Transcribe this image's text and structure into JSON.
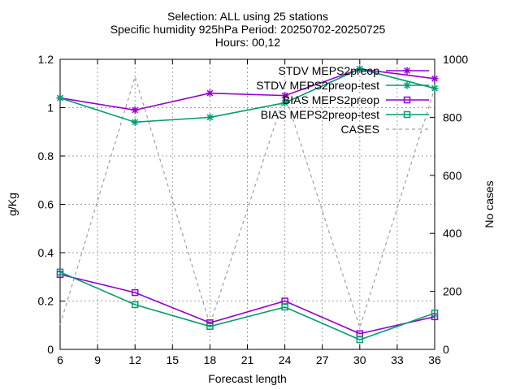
{
  "chart_data": {
    "type": "line",
    "title_lines": [
      "Selection: ALL using    25 stations",
      "Specific humidity 925hPa   Period: 20250702-20250725",
      "Hours: 00,12"
    ],
    "xlabel": "Forecast length",
    "ylabel": "g/Kg",
    "y2label": "No cases",
    "xlim": [
      6,
      36
    ],
    "ylim": [
      0,
      1.2
    ],
    "y2lim": [
      0,
      1000
    ],
    "x_ticks": [
      "6",
      "9",
      "12",
      "15",
      "18",
      "21",
      "24",
      "27",
      "30",
      "33",
      "36"
    ],
    "y_ticks": [
      "0",
      "0.2",
      "0.4",
      "0.6",
      "0.8",
      "1",
      "1.2"
    ],
    "y2_ticks": [
      "0",
      "200",
      "400",
      "600",
      "800",
      "1000"
    ],
    "grid": true,
    "legend_position": "top-right",
    "x": [
      6,
      12,
      18,
      24,
      30,
      36
    ],
    "series": [
      {
        "name": "STDV MEPS2preop",
        "axis": "y1",
        "color": "#9400d3",
        "marker": "star",
        "dash": "solid",
        "values": [
          1.04,
          0.99,
          1.06,
          1.05,
          1.16,
          1.12
        ]
      },
      {
        "name": "STDV MEPS2preop-test",
        "axis": "y1",
        "color": "#009e73",
        "marker": "star",
        "dash": "solid",
        "values": [
          1.04,
          0.94,
          0.96,
          1.02,
          1.16,
          1.08
        ]
      },
      {
        "name": "BIAS MEPS2preop",
        "axis": "y1",
        "color": "#9400d3",
        "marker": "square",
        "dash": "solid",
        "values": [
          0.31,
          0.235,
          0.11,
          0.2,
          0.065,
          0.135
        ]
      },
      {
        "name": "BIAS MEPS2preop-test",
        "axis": "y1",
        "color": "#009e73",
        "marker": "square",
        "dash": "solid",
        "values": [
          0.32,
          0.185,
          0.095,
          0.175,
          0.04,
          0.15
        ]
      },
      {
        "name": "CASES",
        "axis": "y2",
        "color": "#a0a0a0",
        "marker": "none",
        "dash": "dashed",
        "values": [
          85,
          940,
          85,
          880,
          75,
          900
        ]
      }
    ]
  }
}
